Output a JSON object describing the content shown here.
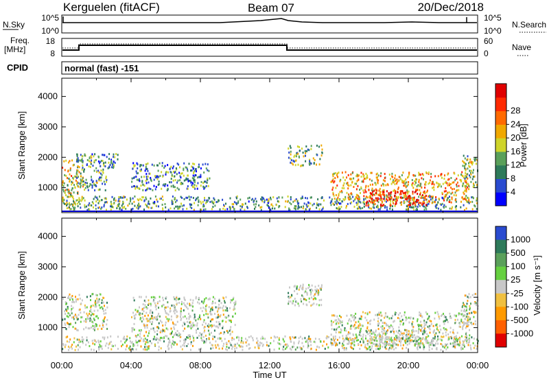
{
  "header": {
    "station": "Kerguelen (fitACF)",
    "beam": "Beam 07",
    "date": "20/Dec/2018"
  },
  "nsky": {
    "label": "N.Sky",
    "ticks": [
      "10^5",
      "10^0"
    ],
    "right_ticks": [
      "10^5",
      "10^0"
    ],
    "right_label": "N.Search"
  },
  "freq": {
    "label_line1": "Freq.",
    "label_line2": "[MHz]",
    "ticks": [
      "18",
      "8"
    ],
    "right_ticks": [
      "60",
      "0"
    ],
    "right_label": "Nave"
  },
  "cpid": {
    "label": "CPID",
    "text": "normal (fast) -151"
  },
  "time_axis": {
    "ticks": [
      "00:00",
      "04:00",
      "08:00",
      "12:00",
      "16:00",
      "20:00",
      "00:00"
    ],
    "label": "Time UT"
  },
  "chart_data": [
    {
      "type": "heatmap",
      "panel": "power",
      "ylabel": "Slant Range [km]",
      "yticks": [
        "1000",
        "2000",
        "3000",
        "4000"
      ],
      "ylim": [
        180,
        4600
      ],
      "xlim_hours": [
        0,
        24
      ],
      "colorbar": {
        "label": "Power [dB]",
        "ticks": [
          "4",
          "8",
          "12",
          "16",
          "20",
          "24",
          "28"
        ],
        "colors": [
          "#0000ff",
          "#2a4bd0",
          "#2e7a5a",
          "#5aa05a",
          "#cfd42a",
          "#f0a800",
          "#ff6a00",
          "#ff2a00",
          "#e00000"
        ]
      },
      "regions": [
        {
          "t": [
            0.0,
            1.2
          ],
          "r": [
            300,
            1900
          ],
          "level": 0.55
        },
        {
          "t": [
            0.8,
            2.6
          ],
          "r": [
            900,
            2100
          ],
          "level": 0.35
        },
        {
          "t": [
            2.6,
            3.2
          ],
          "r": [
            1600,
            2100
          ],
          "level": 0.3
        },
        {
          "t": [
            4.0,
            8.5
          ],
          "r": [
            900,
            1800
          ],
          "level": 0.3
        },
        {
          "t": [
            0.0,
            24.0
          ],
          "r": [
            250,
            700
          ],
          "level": 0.35
        },
        {
          "t": [
            13.0,
            15.0
          ],
          "r": [
            1700,
            2400
          ],
          "level": 0.4
        },
        {
          "t": [
            15.5,
            23.5
          ],
          "r": [
            500,
            1500
          ],
          "level": 0.6
        },
        {
          "t": [
            17.5,
            21.0
          ],
          "r": [
            400,
            900
          ],
          "level": 0.9
        },
        {
          "t": [
            23.0,
            24.0
          ],
          "r": [
            1000,
            2100
          ],
          "level": 0.45
        }
      ]
    },
    {
      "type": "heatmap",
      "panel": "velocity",
      "ylabel": "Slant Range [km]",
      "yticks": [
        "1000",
        "2000",
        "3000",
        "4000"
      ],
      "ylim": [
        180,
        4600
      ],
      "xlim_hours": [
        0,
        24
      ],
      "colorbar": {
        "label": "Velocity [m s⁻¹]",
        "ticks": [
          "1000",
          "500",
          "100",
          "25",
          "-25",
          "-100",
          "-500",
          "-1000"
        ],
        "colors": [
          "#2a4bd0",
          "#2e7a5a",
          "#5aa05a",
          "#66d040",
          "#c8c8c8",
          "#f0c040",
          "#ff9a00",
          "#ff6000",
          "#e00000"
        ]
      },
      "regions": [
        {
          "t": [
            0.0,
            2.6
          ],
          "r": [
            900,
            2100
          ],
          "level": 0.5
        },
        {
          "t": [
            4.0,
            10.0
          ],
          "r": [
            700,
            2000
          ],
          "level": 0.45
        },
        {
          "t": [
            0.0,
            24.0
          ],
          "r": [
            250,
            700
          ],
          "level": 0.3
        },
        {
          "t": [
            13.0,
            15.0
          ],
          "r": [
            1700,
            2400
          ],
          "level": 0.45
        },
        {
          "t": [
            15.5,
            23.5
          ],
          "r": [
            400,
            1500
          ],
          "level": 0.5
        },
        {
          "t": [
            17.5,
            21.0
          ],
          "r": [
            400,
            900
          ],
          "level": 0.3
        },
        {
          "t": [
            23.0,
            24.0
          ],
          "r": [
            1000,
            2100
          ],
          "level": 0.6
        }
      ]
    }
  ]
}
